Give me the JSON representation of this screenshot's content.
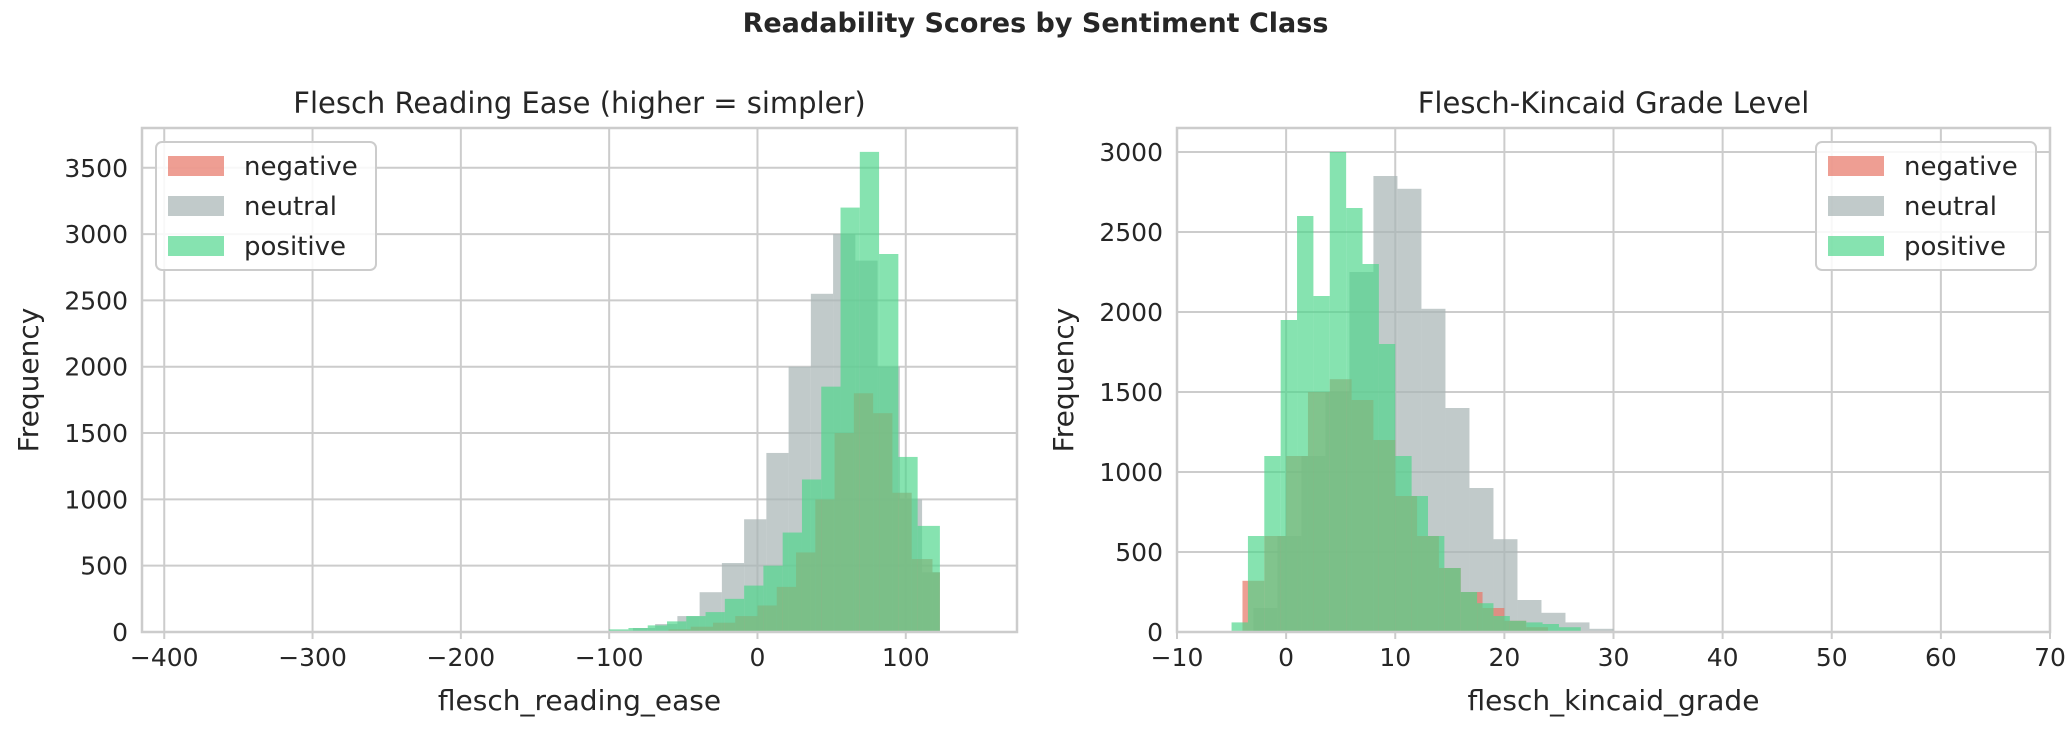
{
  "suptitle": "Readability Scores by Sentiment Class",
  "colors": {
    "negative": "#e8786a",
    "neutral": "#a9b5b5",
    "positive": "#4cd68a"
  },
  "chart_data": [
    {
      "type": "histogram",
      "title": "Flesch Reading Ease (higher = simpler)",
      "xlabel": "flesch_reading_ease",
      "ylabel": "Frequency",
      "xlim": [
        -415,
        175
      ],
      "ylim": [
        0,
        3800
      ],
      "xticks": [
        -400,
        -300,
        -200,
        -100,
        0,
        100
      ],
      "yticks": [
        0,
        500,
        1000,
        1500,
        2000,
        2500,
        3000,
        3500
      ],
      "legend_position": "upper left",
      "grid": true,
      "series": [
        {
          "name": "neutral",
          "bins": [
            [
              -100,
              -84
            ],
            [
              -84,
              -69
            ],
            [
              -69,
              -54
            ],
            [
              -54,
              -39
            ],
            [
              -39,
              -24
            ],
            [
              -24,
              -9
            ],
            [
              -9,
              6
            ],
            [
              6,
              21
            ],
            [
              21,
              36
            ],
            [
              36,
              51
            ],
            [
              51,
              66
            ],
            [
              66,
              81
            ],
            [
              81,
              96
            ],
            [
              96,
              111
            ],
            [
              111,
              123
            ]
          ],
          "counts": [
            10,
            30,
            60,
            120,
            300,
            520,
            850,
            1350,
            2000,
            2550,
            3000,
            2800,
            2000,
            1000,
            450
          ]
        },
        {
          "name": "negative",
          "bins": [
            [
              -60,
              -45
            ],
            [
              -45,
              -30
            ],
            [
              -30,
              -15
            ],
            [
              -15,
              0
            ],
            [
              0,
              13
            ],
            [
              13,
              26
            ],
            [
              26,
              39
            ],
            [
              39,
              52
            ],
            [
              52,
              65
            ],
            [
              65,
              78
            ],
            [
              78,
              91
            ],
            [
              91,
              104
            ],
            [
              104,
              118
            ],
            [
              118,
              123
            ]
          ],
          "counts": [
            20,
            40,
            70,
            120,
            200,
            340,
            600,
            1000,
            1500,
            1800,
            1650,
            1050,
            550,
            450
          ]
        },
        {
          "name": "positive",
          "bins": [
            [
              -100,
              -87
            ],
            [
              -87,
              -74
            ],
            [
              -74,
              -61
            ],
            [
              -61,
              -48
            ],
            [
              -48,
              -35
            ],
            [
              -35,
              -22
            ],
            [
              -22,
              -9
            ],
            [
              -9,
              4
            ],
            [
              4,
              17
            ],
            [
              17,
              30
            ],
            [
              30,
              43
            ],
            [
              43,
              56
            ],
            [
              56,
              69
            ],
            [
              69,
              82
            ],
            [
              82,
              95
            ],
            [
              95,
              108
            ],
            [
              108,
              123
            ]
          ],
          "counts": [
            20,
            30,
            50,
            80,
            120,
            150,
            250,
            350,
            500,
            750,
            1150,
            1850,
            3200,
            3620,
            2850,
            1320,
            800
          ]
        }
      ]
    },
    {
      "type": "histogram",
      "title": "Flesch-Kincaid Grade Level",
      "xlabel": "flesch_kincaid_grade",
      "ylabel": "Frequency",
      "xlim": [
        -10,
        70
      ],
      "ylim": [
        0,
        3150
      ],
      "xticks": [
        -10,
        0,
        10,
        20,
        30,
        40,
        50,
        60,
        70
      ],
      "yticks": [
        0,
        500,
        1000,
        1500,
        2000,
        2500,
        3000
      ],
      "legend_position": "upper right",
      "grid": true,
      "series": [
        {
          "name": "neutral",
          "bins": [
            [
              -3,
              -0.8
            ],
            [
              -0.8,
              1.4
            ],
            [
              1.4,
              3.6
            ],
            [
              3.6,
              5.8
            ],
            [
              5.8,
              8
            ],
            [
              8,
              10.2
            ],
            [
              10.2,
              12.4
            ],
            [
              12.4,
              14.6
            ],
            [
              14.6,
              16.8
            ],
            [
              16.8,
              19
            ],
            [
              19,
              21.2
            ],
            [
              21.2,
              23.4
            ],
            [
              23.4,
              25.6
            ],
            [
              25.6,
              27.8
            ],
            [
              27.8,
              30
            ]
          ],
          "counts": [
            150,
            600,
            1100,
            1500,
            2250,
            2850,
            2770,
            2020,
            1400,
            900,
            580,
            200,
            120,
            60,
            20
          ]
        },
        {
          "name": "negative",
          "bins": [
            [
              -4,
              -2
            ],
            [
              -2,
              0
            ],
            [
              0,
              2
            ],
            [
              2,
              4
            ],
            [
              4,
              6
            ],
            [
              6,
              8
            ],
            [
              8,
              10
            ],
            [
              10,
              12
            ],
            [
              12,
              14
            ],
            [
              14,
              16
            ],
            [
              16,
              18
            ],
            [
              18,
              20
            ],
            [
              20,
              22
            ],
            [
              22,
              24
            ]
          ],
          "counts": [
            320,
            600,
            1100,
            1500,
            1580,
            1450,
            1200,
            850,
            600,
            400,
            250,
            150,
            70,
            30
          ]
        },
        {
          "name": "positive",
          "bins": [
            [
              -5,
              -3.5
            ],
            [
              -3.5,
              -2
            ],
            [
              -2,
              -0.5
            ],
            [
              -0.5,
              1
            ],
            [
              1,
              2.5
            ],
            [
              2.5,
              4
            ],
            [
              4,
              5.5
            ],
            [
              5.5,
              7
            ],
            [
              7,
              8.5
            ],
            [
              8.5,
              10
            ],
            [
              10,
              11.5
            ],
            [
              11.5,
              13
            ],
            [
              13,
              14.5
            ],
            [
              14.5,
              16
            ],
            [
              16,
              17.5
            ],
            [
              17.5,
              19
            ],
            [
              19,
              20.5
            ],
            [
              20.5,
              22
            ],
            [
              22,
              23.5
            ],
            [
              23.5,
              25
            ],
            [
              25,
              27
            ]
          ],
          "counts": [
            60,
            600,
            1100,
            1950,
            2600,
            2100,
            3000,
            2650,
            2300,
            1800,
            1100,
            850,
            600,
            400,
            250,
            180,
            100,
            70,
            60,
            50,
            30
          ]
        }
      ]
    }
  ]
}
